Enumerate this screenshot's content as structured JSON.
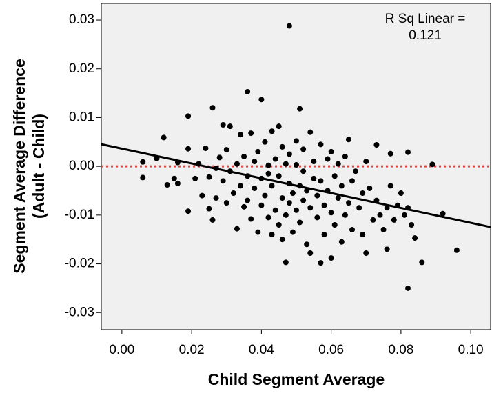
{
  "chart_data": {
    "type": "scatter",
    "x_label": "Child Segment Average",
    "y_label": [
      "Segment Average Difference",
      "(Adult - Child)"
    ],
    "annotation": [
      "R Sq Linear =",
      "0.121"
    ],
    "color": "#000000",
    "xlim": [
      -0.0059,
      0.1057
    ],
    "ylim": [
      -0.0335,
      0.0334
    ],
    "xticks": [
      {
        "value": 0,
        "label": "0.00"
      },
      0.02,
      0.04,
      0.06,
      0.08,
      {
        "value": 0.1,
        "label": "0.10"
      }
    ],
    "yticks": [
      0.03,
      0.02,
      0.01,
      {
        "value": 0,
        "label": "0.00"
      },
      -0.01,
      -0.02,
      -0.03
    ],
    "fit_line": {
      "x": [
        -0.0059,
        0.1057
      ],
      "y": [
        0.00453,
        -0.01245
      ],
      "color": "#000000"
    },
    "reference_line": {
      "y": 0,
      "color": "#e8423f"
    },
    "x": [
      0.006,
      0.006,
      0.01,
      0.012,
      0.013,
      0.015,
      0.016,
      0.016,
      0.019,
      0.019,
      0.019,
      0.021,
      0.022,
      0.023,
      0.024,
      0.025,
      0.025,
      0.026,
      0.026,
      0.027,
      0.027,
      0.028,
      0.029,
      0.029,
      0.03,
      0.03,
      0.031,
      0.031,
      0.032,
      0.033,
      0.033,
      0.034,
      0.034,
      0.035,
      0.035,
      0.036,
      0.036,
      0.036,
      0.037,
      0.037,
      0.038,
      0.038,
      0.039,
      0.039,
      0.04,
      0.04,
      0.04,
      0.041,
      0.041,
      0.042,
      0.042,
      0.042,
      0.043,
      0.043,
      0.043,
      0.044,
      0.044,
      0.045,
      0.045,
      0.045,
      0.046,
      0.046,
      0.046,
      0.047,
      0.047,
      0.047,
      0.048,
      0.048,
      0.048,
      0.048,
      0.049,
      0.049,
      0.05,
      0.05,
      0.05,
      0.051,
      0.051,
      0.051,
      0.052,
      0.052,
      0.052,
      0.053,
      0.053,
      0.054,
      0.054,
      0.054,
      0.055,
      0.055,
      0.056,
      0.056,
      0.057,
      0.057,
      0.057,
      0.058,
      0.058,
      0.059,
      0.059,
      0.06,
      0.06,
      0.06,
      0.061,
      0.061,
      0.062,
      0.062,
      0.063,
      0.063,
      0.064,
      0.064,
      0.065,
      0.065,
      0.066,
      0.066,
      0.067,
      0.068,
      0.069,
      0.069,
      0.07,
      0.07,
      0.071,
      0.072,
      0.073,
      0.073,
      0.074,
      0.075,
      0.076,
      0.076,
      0.077,
      0.077,
      0.078,
      0.079,
      0.08,
      0.081,
      0.082,
      0.082,
      0.082,
      0.083,
      0.084,
      0.086,
      0.089,
      0.092,
      0.096
    ],
    "y": [
      0.0009,
      -0.0023,
      0.0016,
      0.0059,
      -0.0038,
      -0.0025,
      -0.0035,
      0.0008,
      0.0103,
      -0.0092,
      0.0036,
      -0.0025,
      0.0005,
      -0.006,
      0.0037,
      -0.0087,
      -0.0022,
      0.012,
      -0.011,
      -0.0004,
      -0.0065,
      0.0018,
      0.0085,
      -0.003,
      -0.0075,
      0.0034,
      0.0082,
      -0.001,
      -0.0055,
      0.0005,
      -0.0128,
      -0.004,
      0.0065,
      -0.0083,
      0.002,
      0.0153,
      -0.002,
      -0.007,
      0.0068,
      -0.0108,
      0.001,
      -0.0045,
      -0.0135,
      0.003,
      0.0137,
      -0.0025,
      -0.008,
      0.005,
      -0.006,
      -0.0015,
      0.0002,
      -0.0105,
      0.0072,
      -0.014,
      -0.004,
      0.0015,
      -0.009,
      0.0082,
      -0.002,
      -0.012,
      0.004,
      -0.0065,
      -0.015,
      -0.0197,
      0.0005,
      -0.01,
      0.0288,
      -0.0035,
      -0.0075,
      0.0025,
      -0.0055,
      -0.0135,
      0.0003,
      -0.009,
      0.0052,
      0.0118,
      -0.004,
      -0.0115,
      -0.001,
      -0.007,
      0.0035,
      -0.016,
      -0.005,
      0.007,
      -0.0178,
      -0.0085,
      -0.0025,
      0.001,
      -0.0105,
      -0.006,
      -0.0198,
      0.0045,
      -0.003,
      -0.008,
      -0.014,
      0.0015,
      -0.005,
      -0.0188,
      -0.0095,
      0.003,
      -0.002,
      -0.012,
      -0.0065,
      0.0005,
      -0.0155,
      -0.004,
      -0.01,
      0.002,
      0.0055,
      -0.0075,
      -0.003,
      -0.013,
      -0.001,
      -0.0085,
      -0.0055,
      -0.014,
      -0.0178,
      0.001,
      -0.0045,
      -0.011,
      0.0044,
      -0.007,
      -0.01,
      -0.013,
      -0.017,
      -0.0085,
      0.0026,
      -0.004,
      -0.011,
      -0.008,
      -0.0055,
      -0.01,
      0.0029,
      -0.025,
      -0.0085,
      -0.012,
      -0.0147,
      -0.0197,
      0.0004,
      -0.0097,
      -0.0172
    ]
  }
}
